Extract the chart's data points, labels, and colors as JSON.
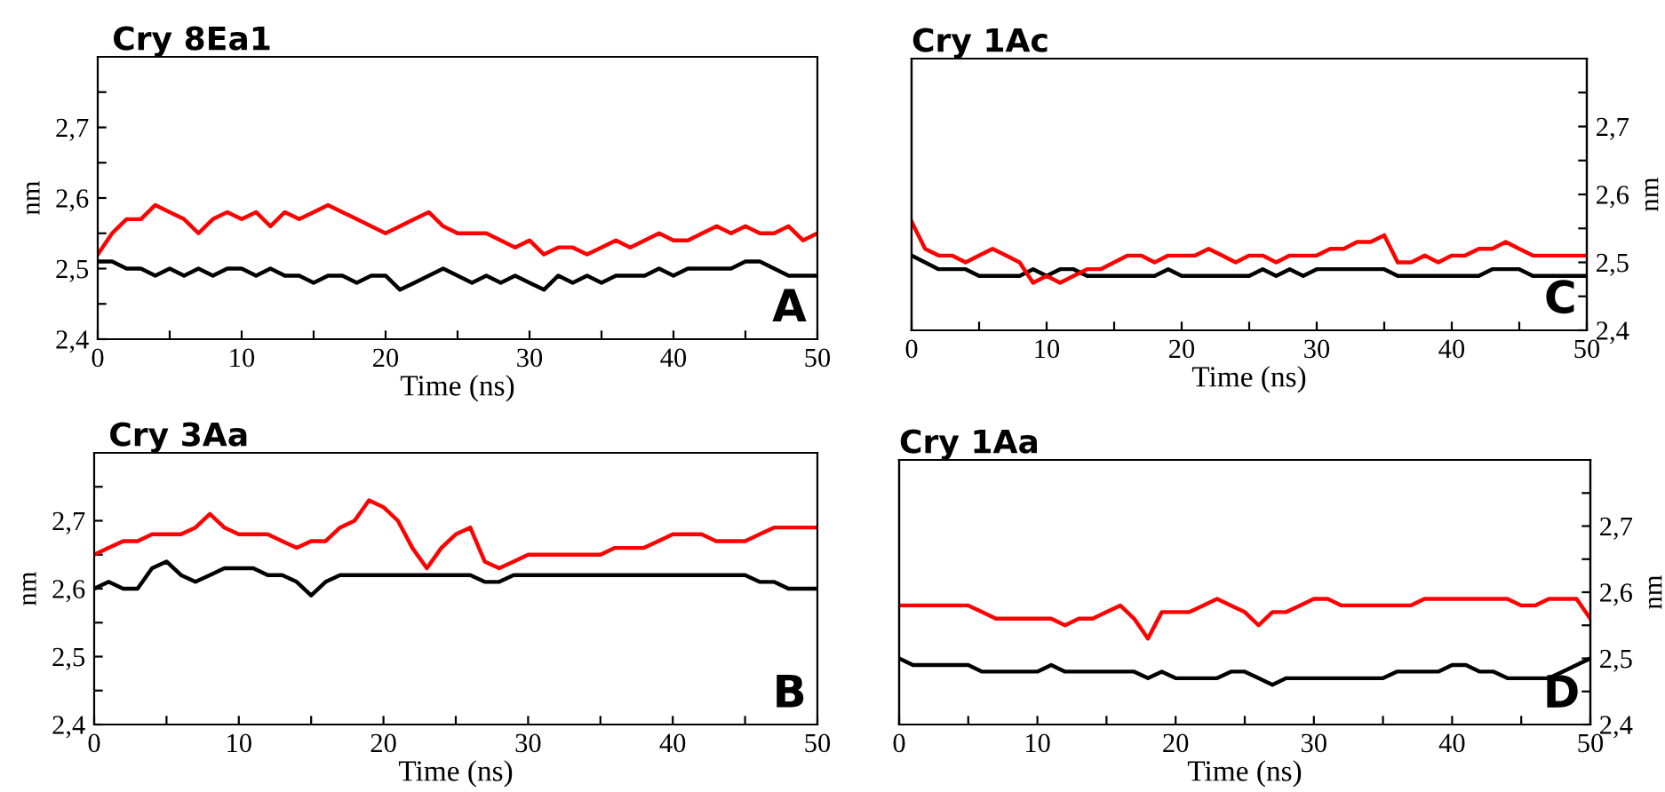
{
  "chart_data": [
    {
      "type": "line",
      "title": "Cry 8Ea1",
      "xlabel": "Time (ns)",
      "ylabel": "nm",
      "annotations": [
        "A"
      ],
      "xlim": [
        0,
        50
      ],
      "xticks": [
        0,
        {
          "value": 5,
          "label": null
        },
        10,
        {
          "value": 15,
          "label": null
        },
        20,
        {
          "value": 25,
          "label": null
        },
        30,
        {
          "value": 35,
          "label": null
        },
        40,
        {
          "value": 45,
          "label": null
        },
        50
      ],
      "ylim": [
        2.4,
        2.8
      ],
      "yticks": [
        {
          "value": 2.4,
          "label": "2,4"
        },
        {
          "value": 2.45,
          "label": null
        },
        {
          "value": 2.5,
          "label": "2,5"
        },
        {
          "value": 2.55,
          "label": null
        },
        {
          "value": 2.6,
          "label": "2,6"
        },
        {
          "value": 2.65,
          "label": null
        },
        {
          "value": 2.7,
          "label": "2,7"
        },
        {
          "value": 2.75,
          "label": null
        }
      ],
      "x": [
        0,
        1,
        2,
        3,
        4,
        5,
        6,
        7,
        8,
        9,
        10,
        11,
        12,
        13,
        14,
        15,
        16,
        17,
        18,
        19,
        20,
        21,
        22,
        23,
        24,
        25,
        26,
        27,
        28,
        29,
        30,
        31,
        32,
        33,
        34,
        35,
        36,
        37,
        38,
        39,
        40,
        41,
        42,
        43,
        44,
        45,
        46,
        47,
        48,
        49,
        50
      ],
      "series": [
        {
          "color": "#000000",
          "values": [
            2.51,
            2.51,
            2.5,
            2.5,
            2.49,
            2.5,
            2.49,
            2.5,
            2.49,
            2.5,
            2.5,
            2.49,
            2.5,
            2.49,
            2.49,
            2.48,
            2.49,
            2.49,
            2.48,
            2.49,
            2.49,
            2.47,
            2.48,
            2.49,
            2.5,
            2.49,
            2.48,
            2.49,
            2.48,
            2.49,
            2.48,
            2.47,
            2.49,
            2.48,
            2.49,
            2.48,
            2.49,
            2.49,
            2.49,
            2.5,
            2.49,
            2.5,
            2.5,
            2.5,
            2.5,
            2.51,
            2.51,
            2.5,
            2.49,
            2.49,
            2.49
          ]
        },
        {
          "color": "#ff0000",
          "values": [
            2.52,
            2.55,
            2.57,
            2.57,
            2.59,
            2.58,
            2.57,
            2.55,
            2.57,
            2.58,
            2.57,
            2.58,
            2.56,
            2.58,
            2.57,
            2.58,
            2.59,
            2.58,
            2.57,
            2.56,
            2.55,
            2.56,
            2.57,
            2.58,
            2.56,
            2.55,
            2.55,
            2.55,
            2.54,
            2.53,
            2.54,
            2.52,
            2.53,
            2.53,
            2.52,
            2.53,
            2.54,
            2.53,
            2.54,
            2.55,
            2.54,
            2.54,
            2.55,
            2.56,
            2.55,
            2.56,
            2.55,
            2.55,
            2.56,
            2.54,
            2.55
          ]
        }
      ]
    },
    {
      "type": "line",
      "title": "Cry 1Ac",
      "xlabel": "Time (ns)",
      "y2label": "nm",
      "annotations": [
        "C"
      ],
      "xlim": [
        0,
        50
      ],
      "xticks": [
        0,
        {
          "value": 5,
          "label": null
        },
        10,
        {
          "value": 15,
          "label": null
        },
        20,
        {
          "value": 25,
          "label": null
        },
        30,
        {
          "value": 35,
          "label": null
        },
        40,
        {
          "value": 45,
          "label": null
        },
        50
      ],
      "y2lim": [
        2.4,
        2.8
      ],
      "y2ticks": [
        {
          "value": 2.4,
          "label": "2,4"
        },
        {
          "value": 2.45,
          "label": null
        },
        {
          "value": 2.5,
          "label": "2,5"
        },
        {
          "value": 2.55,
          "label": null
        },
        {
          "value": 2.6,
          "label": "2,6"
        },
        {
          "value": 2.65,
          "label": null
        },
        {
          "value": 2.7,
          "label": "2,7"
        },
        {
          "value": 2.75,
          "label": null
        }
      ],
      "x": [
        0,
        1,
        2,
        3,
        4,
        5,
        6,
        7,
        8,
        9,
        10,
        11,
        12,
        13,
        14,
        15,
        16,
        17,
        18,
        19,
        20,
        21,
        22,
        23,
        24,
        25,
        26,
        27,
        28,
        29,
        30,
        31,
        32,
        33,
        34,
        35,
        36,
        37,
        38,
        39,
        40,
        41,
        42,
        43,
        44,
        45,
        46,
        47,
        48,
        49,
        50
      ],
      "series": [
        {
          "color": "#000000",
          "axis": "y2",
          "values": [
            2.51,
            2.5,
            2.49,
            2.49,
            2.49,
            2.48,
            2.48,
            2.48,
            2.48,
            2.49,
            2.48,
            2.49,
            2.49,
            2.48,
            2.48,
            2.48,
            2.48,
            2.48,
            2.48,
            2.49,
            2.48,
            2.48,
            2.48,
            2.48,
            2.48,
            2.48,
            2.49,
            2.48,
            2.49,
            2.48,
            2.49,
            2.49,
            2.49,
            2.49,
            2.49,
            2.49,
            2.48,
            2.48,
            2.48,
            2.48,
            2.48,
            2.48,
            2.48,
            2.49,
            2.49,
            2.49,
            2.48,
            2.48,
            2.48,
            2.48,
            2.48
          ]
        },
        {
          "color": "#ff0000",
          "axis": "y2",
          "values": [
            2.56,
            2.52,
            2.51,
            2.51,
            2.5,
            2.51,
            2.52,
            2.51,
            2.5,
            2.47,
            2.48,
            2.47,
            2.48,
            2.49,
            2.49,
            2.5,
            2.51,
            2.51,
            2.5,
            2.51,
            2.51,
            2.51,
            2.52,
            2.51,
            2.5,
            2.51,
            2.51,
            2.5,
            2.51,
            2.51,
            2.51,
            2.52,
            2.52,
            2.53,
            2.53,
            2.54,
            2.5,
            2.5,
            2.51,
            2.5,
            2.51,
            2.51,
            2.52,
            2.52,
            2.53,
            2.52,
            2.51,
            2.51,
            2.51,
            2.51,
            2.51
          ]
        }
      ]
    },
    {
      "type": "line",
      "title": "Cry 3Aa",
      "xlabel": "Time (ns)",
      "ylabel": "nm",
      "annotations": [
        "B"
      ],
      "xlim": [
        0,
        50
      ],
      "xticks": [
        0,
        {
          "value": 5,
          "label": null
        },
        10,
        {
          "value": 15,
          "label": null
        },
        20,
        {
          "value": 25,
          "label": null
        },
        30,
        {
          "value": 35,
          "label": null
        },
        40,
        {
          "value": 45,
          "label": null
        },
        50
      ],
      "ylim": [
        2.4,
        2.8
      ],
      "yticks": [
        {
          "value": 2.4,
          "label": "2,4"
        },
        {
          "value": 2.45,
          "label": null
        },
        {
          "value": 2.5,
          "label": "2,5"
        },
        {
          "value": 2.55,
          "label": null
        },
        {
          "value": 2.6,
          "label": "2,6"
        },
        {
          "value": 2.65,
          "label": null
        },
        {
          "value": 2.7,
          "label": "2,7"
        },
        {
          "value": 2.75,
          "label": null
        }
      ],
      "x": [
        0,
        1,
        2,
        3,
        4,
        5,
        6,
        7,
        8,
        9,
        10,
        11,
        12,
        13,
        14,
        15,
        16,
        17,
        18,
        19,
        20,
        21,
        22,
        23,
        24,
        25,
        26,
        27,
        28,
        29,
        30,
        31,
        32,
        33,
        34,
        35,
        36,
        37,
        38,
        39,
        40,
        41,
        42,
        43,
        44,
        45,
        46,
        47,
        48,
        49,
        50
      ],
      "series": [
        {
          "color": "#000000",
          "values": [
            2.6,
            2.61,
            2.6,
            2.6,
            2.63,
            2.64,
            2.62,
            2.61,
            2.62,
            2.63,
            2.63,
            2.63,
            2.62,
            2.62,
            2.61,
            2.59,
            2.61,
            2.62,
            2.62,
            2.62,
            2.62,
            2.62,
            2.62,
            2.62,
            2.62,
            2.62,
            2.62,
            2.61,
            2.61,
            2.62,
            2.62,
            2.62,
            2.62,
            2.62,
            2.62,
            2.62,
            2.62,
            2.62,
            2.62,
            2.62,
            2.62,
            2.62,
            2.62,
            2.62,
            2.62,
            2.62,
            2.61,
            2.61,
            2.6,
            2.6,
            2.6
          ]
        },
        {
          "color": "#ff0000",
          "values": [
            2.65,
            2.66,
            2.67,
            2.67,
            2.68,
            2.68,
            2.68,
            2.69,
            2.71,
            2.69,
            2.68,
            2.68,
            2.68,
            2.67,
            2.66,
            2.67,
            2.67,
            2.69,
            2.7,
            2.73,
            2.72,
            2.7,
            2.66,
            2.63,
            2.66,
            2.68,
            2.69,
            2.64,
            2.63,
            2.64,
            2.65,
            2.65,
            2.65,
            2.65,
            2.65,
            2.65,
            2.66,
            2.66,
            2.66,
            2.67,
            2.68,
            2.68,
            2.68,
            2.67,
            2.67,
            2.67,
            2.68,
            2.69,
            2.69,
            2.69,
            2.69
          ]
        }
      ]
    },
    {
      "type": "line",
      "title": "Cry 1Aa",
      "xlabel": "Time (ns)",
      "y2label": "nm",
      "annotations": [
        "D"
      ],
      "xlim": [
        0,
        50
      ],
      "xticks": [
        0,
        {
          "value": 5,
          "label": null
        },
        10,
        {
          "value": 15,
          "label": null
        },
        20,
        {
          "value": 25,
          "label": null
        },
        30,
        {
          "value": 35,
          "label": null
        },
        40,
        {
          "value": 45,
          "label": null
        },
        50
      ],
      "y2lim": [
        2.4,
        2.8
      ],
      "y2ticks": [
        {
          "value": 2.4,
          "label": "2,4"
        },
        {
          "value": 2.45,
          "label": null
        },
        {
          "value": 2.5,
          "label": "2,5"
        },
        {
          "value": 2.55,
          "label": null
        },
        {
          "value": 2.6,
          "label": "2,6"
        },
        {
          "value": 2.65,
          "label": null
        },
        {
          "value": 2.7,
          "label": "2,7"
        },
        {
          "value": 2.75,
          "label": null
        }
      ],
      "x": [
        0,
        1,
        2,
        3,
        4,
        5,
        6,
        7,
        8,
        9,
        10,
        11,
        12,
        13,
        14,
        15,
        16,
        17,
        18,
        19,
        20,
        21,
        22,
        23,
        24,
        25,
        26,
        27,
        28,
        29,
        30,
        31,
        32,
        33,
        34,
        35,
        36,
        37,
        38,
        39,
        40,
        41,
        42,
        43,
        44,
        45,
        46,
        47,
        48,
        49,
        50
      ],
      "series": [
        {
          "color": "#000000",
          "axis": "y2",
          "values": [
            2.5,
            2.49,
            2.49,
            2.49,
            2.49,
            2.49,
            2.48,
            2.48,
            2.48,
            2.48,
            2.48,
            2.49,
            2.48,
            2.48,
            2.48,
            2.48,
            2.48,
            2.48,
            2.47,
            2.48,
            2.47,
            2.47,
            2.47,
            2.47,
            2.48,
            2.48,
            2.47,
            2.46,
            2.47,
            2.47,
            2.47,
            2.47,
            2.47,
            2.47,
            2.47,
            2.47,
            2.48,
            2.48,
            2.48,
            2.48,
            2.49,
            2.49,
            2.48,
            2.48,
            2.47,
            2.47,
            2.47,
            2.47,
            2.48,
            2.49,
            2.5
          ]
        },
        {
          "color": "#ff0000",
          "axis": "y2",
          "values": [
            2.58,
            2.58,
            2.58,
            2.58,
            2.58,
            2.58,
            2.57,
            2.56,
            2.56,
            2.56,
            2.56,
            2.56,
            2.55,
            2.56,
            2.56,
            2.57,
            2.58,
            2.56,
            2.53,
            2.57,
            2.57,
            2.57,
            2.58,
            2.59,
            2.58,
            2.57,
            2.55,
            2.57,
            2.57,
            2.58,
            2.59,
            2.59,
            2.58,
            2.58,
            2.58,
            2.58,
            2.58,
            2.58,
            2.59,
            2.59,
            2.59,
            2.59,
            2.59,
            2.59,
            2.59,
            2.58,
            2.58,
            2.59,
            2.59,
            2.59,
            2.56
          ]
        }
      ]
    }
  ]
}
